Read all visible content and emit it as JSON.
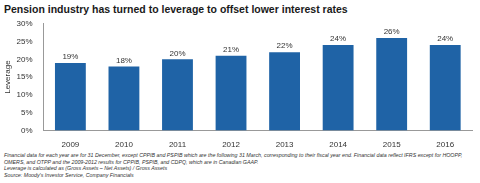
{
  "chart_data": {
    "type": "bar",
    "title": "Pension industry has turned to leverage to offset lower interest rates",
    "y_label": "Leverage",
    "categories": [
      "2009",
      "2010",
      "2011",
      "2012",
      "2013",
      "2014",
      "2015",
      "2016"
    ],
    "values": [
      19,
      18,
      20,
      21,
      22,
      24,
      26,
      24
    ],
    "value_labels": [
      "19%",
      "18%",
      "20%",
      "21%",
      "22%",
      "24%",
      "26%",
      "24%"
    ],
    "data_labels": true,
    "color": "#1f63a6",
    "ylim": [
      0,
      30
    ],
    "yticks": [
      {
        "value": 0,
        "label": "0%"
      },
      {
        "value": 5,
        "label": "5%"
      },
      {
        "value": 10,
        "label": "10%"
      },
      {
        "value": 15,
        "label": "15%"
      },
      {
        "value": 20,
        "label": "20%"
      },
      {
        "value": 25,
        "label": "25%"
      },
      {
        "value": 30,
        "label": "30%"
      }
    ],
    "grid": false,
    "footnotes": [
      "Financial data for each year are for 31 December, except CPPIB and PSPIB which are the following 31 March, corresponding to their fiscal year end. Financial data reflect IFRS except for HOOPP, OMERS, and OTPP and the 2009-2012 results for CPPIB, PSPIB, and CDPQ, which are in Canadian GAAP.",
      "Leverage is calculated as (Gross Assets – Net Assets) / Gross Assets",
      "Source: Moody's Investor Service, Company Financials"
    ]
  }
}
